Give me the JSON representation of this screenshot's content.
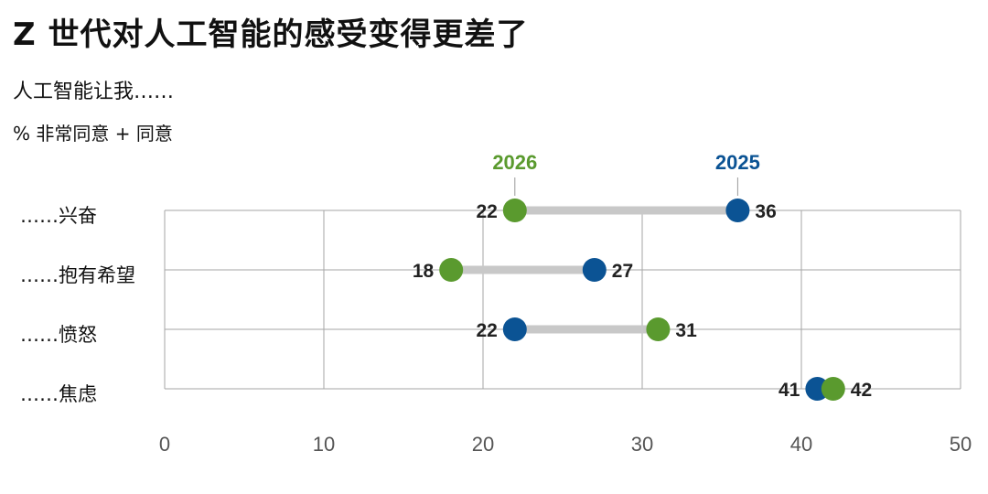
{
  "title": "Z 世代对人工智能的感受变得更差了",
  "subtitle": "人工智能让我……",
  "unit_label": "% 非常同意 + 同意",
  "colors": {
    "y2025": "#0b5394",
    "y2026": "#5a9a2e",
    "connector": "#c8c8c8",
    "grid": "#a6a6a6"
  },
  "chart_data": {
    "type": "dumbbell",
    "categories": [
      "……兴奋",
      "……抱有希望",
      "……愤怒",
      "……焦虑"
    ],
    "series": [
      {
        "name": "2025",
        "values": [
          36,
          27,
          22,
          41
        ]
      },
      {
        "name": "2026",
        "values": [
          22,
          18,
          31,
          42
        ]
      }
    ],
    "xlim": [
      0,
      50
    ],
    "xticks": [
      "0",
      "10",
      "20",
      "30",
      "40",
      "50"
    ],
    "grid": true,
    "legend": "top"
  }
}
